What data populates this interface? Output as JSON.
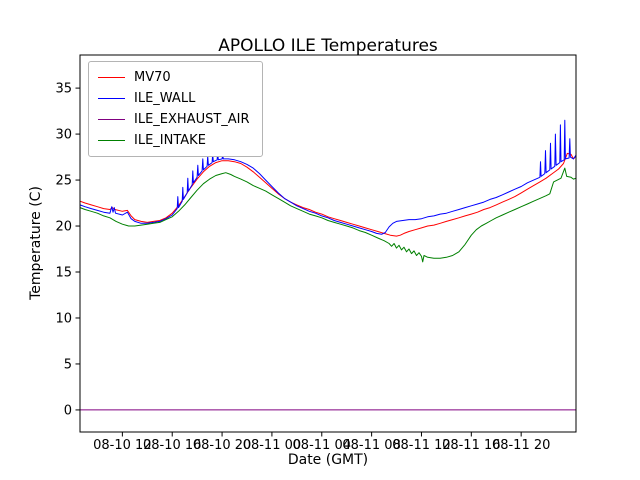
{
  "chart_data": {
    "type": "line",
    "title": "APOLLO ILE Temperatures",
    "xlabel": "Date (GMT)",
    "ylabel": "Temperature (C)",
    "x_unit": "hours since 08-10 00:00 GMT",
    "xlim": [
      8.6,
      48.4
    ],
    "ylim": [
      -2.4,
      38.6
    ],
    "grid": false,
    "legend_position": "upper left",
    "yticks": [
      0,
      5,
      10,
      15,
      20,
      25,
      30,
      35
    ],
    "xticks": [
      {
        "v": 12,
        "label": "08-10 12"
      },
      {
        "v": 16,
        "label": "08-10 16"
      },
      {
        "v": 20,
        "label": "08-10 20"
      },
      {
        "v": 24,
        "label": "08-11 00"
      },
      {
        "v": 28,
        "label": "08-11 04"
      },
      {
        "v": 32,
        "label": "08-11 08"
      },
      {
        "v": 36,
        "label": "08-11 12"
      },
      {
        "v": 40,
        "label": "08-11 16"
      },
      {
        "v": 44,
        "label": "08-11 20"
      }
    ],
    "series": [
      {
        "name": "MV70",
        "color": "#ff0000",
        "points": [
          [
            8.6,
            22.7
          ],
          [
            9,
            22.5
          ],
          [
            9.5,
            22.3
          ],
          [
            10,
            22.1
          ],
          [
            10.5,
            21.9
          ],
          [
            11,
            21.8
          ],
          [
            11.2,
            22.0
          ],
          [
            11.4,
            21.8
          ],
          [
            12,
            21.6
          ],
          [
            12.4,
            21.7
          ],
          [
            12.7,
            21.1
          ],
          [
            13,
            20.7
          ],
          [
            13.5,
            20.5
          ],
          [
            14,
            20.4
          ],
          [
            14.5,
            20.5
          ],
          [
            15,
            20.6
          ],
          [
            15.5,
            20.9
          ],
          [
            16,
            21.4
          ],
          [
            16.5,
            22.2
          ],
          [
            17,
            23.2
          ],
          [
            17.5,
            24.2
          ],
          [
            18,
            25.1
          ],
          [
            18.5,
            25.9
          ],
          [
            19,
            26.5
          ],
          [
            19.5,
            26.9
          ],
          [
            20,
            27.1
          ],
          [
            20.5,
            27.1
          ],
          [
            21,
            27.0
          ],
          [
            21.5,
            26.8
          ],
          [
            22,
            26.4
          ],
          [
            22.5,
            25.9
          ],
          [
            23,
            25.3
          ],
          [
            23.5,
            24.7
          ],
          [
            24,
            24.1
          ],
          [
            24.5,
            23.5
          ],
          [
            25,
            23.0
          ],
          [
            25.5,
            22.6
          ],
          [
            26,
            22.3
          ],
          [
            26.5,
            22.0
          ],
          [
            27,
            21.8
          ],
          [
            27.5,
            21.5
          ],
          [
            28,
            21.3
          ],
          [
            28.5,
            21.0
          ],
          [
            29,
            20.8
          ],
          [
            29.5,
            20.6
          ],
          [
            30,
            20.4
          ],
          [
            30.5,
            20.2
          ],
          [
            31,
            20.0
          ],
          [
            31.5,
            19.8
          ],
          [
            32,
            19.6
          ],
          [
            32.5,
            19.4
          ],
          [
            33,
            19.2
          ],
          [
            33.5,
            19.0
          ],
          [
            34,
            18.9
          ],
          [
            34.3,
            19.0
          ],
          [
            34.6,
            19.2
          ],
          [
            35,
            19.4
          ],
          [
            35.5,
            19.6
          ],
          [
            36,
            19.8
          ],
          [
            36.5,
            20.0
          ],
          [
            37,
            20.1
          ],
          [
            37.5,
            20.3
          ],
          [
            38,
            20.5
          ],
          [
            38.5,
            20.7
          ],
          [
            39,
            20.9
          ],
          [
            39.5,
            21.1
          ],
          [
            40,
            21.3
          ],
          [
            40.5,
            21.5
          ],
          [
            41,
            21.8
          ],
          [
            41.5,
            22.0
          ],
          [
            42,
            22.3
          ],
          [
            42.5,
            22.6
          ],
          [
            43,
            22.9
          ],
          [
            43.5,
            23.2
          ],
          [
            44,
            23.6
          ],
          [
            44.5,
            24.0
          ],
          [
            45,
            24.4
          ],
          [
            45.5,
            24.8
          ],
          [
            46,
            25.2
          ],
          [
            46.5,
            25.7
          ],
          [
            47,
            26.2
          ],
          [
            47.4,
            26.8
          ],
          [
            47.7,
            27.9
          ],
          [
            48,
            27.8
          ],
          [
            48.2,
            27.3
          ],
          [
            48.4,
            27.6
          ]
        ]
      },
      {
        "name": "ILE_WALL",
        "color": "#0000ff",
        "points": [
          [
            8.6,
            22.3
          ],
          [
            9,
            22.1
          ],
          [
            9.5,
            21.9
          ],
          [
            10,
            21.7
          ],
          [
            10.5,
            21.5
          ],
          [
            11,
            21.4
          ],
          [
            11.15,
            22.1
          ],
          [
            11.25,
            21.5
          ],
          [
            11.35,
            22.0
          ],
          [
            11.45,
            21.4
          ],
          [
            12,
            21.2
          ],
          [
            12.4,
            21.5
          ],
          [
            12.7,
            20.8
          ],
          [
            13,
            20.5
          ],
          [
            13.5,
            20.3
          ],
          [
            14,
            20.3
          ],
          [
            14.5,
            20.4
          ],
          [
            15,
            20.5
          ],
          [
            15.5,
            20.8
          ],
          [
            16,
            21.2
          ],
          [
            16.4,
            21.9
          ],
          [
            16.45,
            23.2
          ],
          [
            16.5,
            22.0
          ],
          [
            16.8,
            22.7
          ],
          [
            16.85,
            24.2
          ],
          [
            16.9,
            22.9
          ],
          [
            17.2,
            23.6
          ],
          [
            17.25,
            25.2
          ],
          [
            17.3,
            23.8
          ],
          [
            17.6,
            24.5
          ],
          [
            17.65,
            26.0
          ],
          [
            17.7,
            24.7
          ],
          [
            18,
            25.3
          ],
          [
            18.05,
            26.6
          ],
          [
            18.1,
            25.5
          ],
          [
            18.4,
            26.0
          ],
          [
            18.45,
            27.3
          ],
          [
            18.5,
            26.1
          ],
          [
            18.8,
            26.5
          ],
          [
            18.85,
            27.6
          ],
          [
            18.9,
            26.6
          ],
          [
            19.2,
            26.9
          ],
          [
            19.25,
            27.9
          ],
          [
            19.3,
            27.0
          ],
          [
            19.6,
            27.2
          ],
          [
            19.65,
            28.0
          ],
          [
            19.7,
            27.2
          ],
          [
            20,
            27.3
          ],
          [
            20.05,
            27.8
          ],
          [
            20.1,
            27.3
          ],
          [
            20.5,
            27.3
          ],
          [
            21,
            27.2
          ],
          [
            21.5,
            27.0
          ],
          [
            22,
            26.7
          ],
          [
            22.5,
            26.3
          ],
          [
            23,
            25.7
          ],
          [
            23.5,
            25.0
          ],
          [
            24,
            24.3
          ],
          [
            24.5,
            23.6
          ],
          [
            25,
            23.0
          ],
          [
            25.5,
            22.6
          ],
          [
            26,
            22.2
          ],
          [
            26.5,
            21.9
          ],
          [
            27,
            21.6
          ],
          [
            27.5,
            21.4
          ],
          [
            28,
            21.1
          ],
          [
            28.5,
            20.9
          ],
          [
            29,
            20.6
          ],
          [
            29.5,
            20.4
          ],
          [
            30,
            20.2
          ],
          [
            30.5,
            20.0
          ],
          [
            31,
            19.8
          ],
          [
            31.5,
            19.6
          ],
          [
            32,
            19.4
          ],
          [
            32.4,
            19.2
          ],
          [
            32.8,
            19.1
          ],
          [
            33.1,
            19.3
          ],
          [
            33.4,
            19.9
          ],
          [
            33.7,
            20.3
          ],
          [
            34,
            20.5
          ],
          [
            34.5,
            20.6
          ],
          [
            35,
            20.7
          ],
          [
            35.5,
            20.7
          ],
          [
            36,
            20.8
          ],
          [
            36.5,
            21.0
          ],
          [
            37,
            21.1
          ],
          [
            37.5,
            21.3
          ],
          [
            38,
            21.4
          ],
          [
            38.5,
            21.6
          ],
          [
            39,
            21.8
          ],
          [
            39.5,
            22.0
          ],
          [
            40,
            22.2
          ],
          [
            40.5,
            22.4
          ],
          [
            41,
            22.6
          ],
          [
            41.5,
            22.9
          ],
          [
            42,
            23.1
          ],
          [
            42.5,
            23.4
          ],
          [
            43,
            23.7
          ],
          [
            43.5,
            24.0
          ],
          [
            44,
            24.3
          ],
          [
            44.5,
            24.7
          ],
          [
            45,
            25.0
          ],
          [
            45.5,
            25.3
          ],
          [
            45.55,
            27.0
          ],
          [
            45.6,
            25.4
          ],
          [
            45.9,
            25.7
          ],
          [
            45.95,
            28.2
          ],
          [
            46,
            25.8
          ],
          [
            46.3,
            26.1
          ],
          [
            46.35,
            29.0
          ],
          [
            46.4,
            26.2
          ],
          [
            46.7,
            26.5
          ],
          [
            46.75,
            30.0
          ],
          [
            46.8,
            26.6
          ],
          [
            47.1,
            26.9
          ],
          [
            47.15,
            31.0
          ],
          [
            47.2,
            27.0
          ],
          [
            47.45,
            27.2
          ],
          [
            47.5,
            31.5
          ],
          [
            47.55,
            27.3
          ],
          [
            47.85,
            27.4
          ],
          [
            47.9,
            29.5
          ],
          [
            47.95,
            27.5
          ],
          [
            48.2,
            27.3
          ],
          [
            48.4,
            27.7
          ]
        ]
      },
      {
        "name": "ILE_EXHAUST_AIR",
        "color": "#800080",
        "points": [
          [
            8.6,
            0
          ],
          [
            48.4,
            0
          ]
        ]
      },
      {
        "name": "ILE_INTAKE",
        "color": "#008000",
        "points": [
          [
            8.6,
            22.0
          ],
          [
            9,
            21.8
          ],
          [
            9.5,
            21.6
          ],
          [
            10,
            21.4
          ],
          [
            10.5,
            21.1
          ],
          [
            11,
            20.9
          ],
          [
            11.5,
            20.5
          ],
          [
            12,
            20.2
          ],
          [
            12.5,
            20.0
          ],
          [
            13,
            20.0
          ],
          [
            13.5,
            20.1
          ],
          [
            14,
            20.2
          ],
          [
            14.5,
            20.3
          ],
          [
            15,
            20.4
          ],
          [
            15.5,
            20.7
          ],
          [
            16,
            21.0
          ],
          [
            16.5,
            21.6
          ],
          [
            17,
            22.3
          ],
          [
            17.5,
            23.1
          ],
          [
            18,
            23.9
          ],
          [
            18.5,
            24.6
          ],
          [
            19,
            25.1
          ],
          [
            19.5,
            25.5
          ],
          [
            20,
            25.7
          ],
          [
            20.3,
            25.8
          ],
          [
            20.7,
            25.6
          ],
          [
            21,
            25.4
          ],
          [
            21.5,
            25.1
          ],
          [
            22,
            24.8
          ],
          [
            22.5,
            24.4
          ],
          [
            23,
            24.1
          ],
          [
            23.5,
            23.8
          ],
          [
            24,
            23.4
          ],
          [
            24.5,
            23.0
          ],
          [
            25,
            22.6
          ],
          [
            25.5,
            22.2
          ],
          [
            26,
            21.9
          ],
          [
            26.5,
            21.6
          ],
          [
            27,
            21.3
          ],
          [
            27.5,
            21.1
          ],
          [
            28,
            20.9
          ],
          [
            28.5,
            20.6
          ],
          [
            29,
            20.4
          ],
          [
            29.5,
            20.2
          ],
          [
            30,
            20.0
          ],
          [
            30.5,
            19.8
          ],
          [
            31,
            19.5
          ],
          [
            31.5,
            19.3
          ],
          [
            32,
            19.0
          ],
          [
            32.5,
            18.7
          ],
          [
            33,
            18.4
          ],
          [
            33.4,
            18.1
          ],
          [
            33.6,
            17.8
          ],
          [
            33.8,
            18.1
          ],
          [
            34,
            17.6
          ],
          [
            34.2,
            17.9
          ],
          [
            34.4,
            17.4
          ],
          [
            34.6,
            17.7
          ],
          [
            34.8,
            17.2
          ],
          [
            35,
            17.5
          ],
          [
            35.2,
            17.0
          ],
          [
            35.4,
            17.3
          ],
          [
            35.6,
            16.8
          ],
          [
            35.8,
            17.1
          ],
          [
            36,
            16.7
          ],
          [
            36.1,
            16.1
          ],
          [
            36.2,
            16.8
          ],
          [
            36.5,
            16.6
          ],
          [
            37,
            16.5
          ],
          [
            37.5,
            16.5
          ],
          [
            38,
            16.6
          ],
          [
            38.5,
            16.8
          ],
          [
            39,
            17.2
          ],
          [
            39.5,
            18.0
          ],
          [
            40,
            19.0
          ],
          [
            40.4,
            19.6
          ],
          [
            40.8,
            20.0
          ],
          [
            41.2,
            20.3
          ],
          [
            41.6,
            20.6
          ],
          [
            42,
            20.9
          ],
          [
            42.5,
            21.2
          ],
          [
            43,
            21.5
          ],
          [
            43.5,
            21.8
          ],
          [
            44,
            22.1
          ],
          [
            44.5,
            22.4
          ],
          [
            45,
            22.7
          ],
          [
            45.5,
            23.0
          ],
          [
            46,
            23.3
          ],
          [
            46.3,
            23.5
          ],
          [
            46.6,
            24.8
          ],
          [
            46.9,
            25.0
          ],
          [
            47.2,
            25.2
          ],
          [
            47.5,
            26.3
          ],
          [
            47.65,
            25.4
          ],
          [
            48,
            25.3
          ],
          [
            48.2,
            25.1
          ],
          [
            48.4,
            25.2
          ]
        ]
      }
    ]
  }
}
